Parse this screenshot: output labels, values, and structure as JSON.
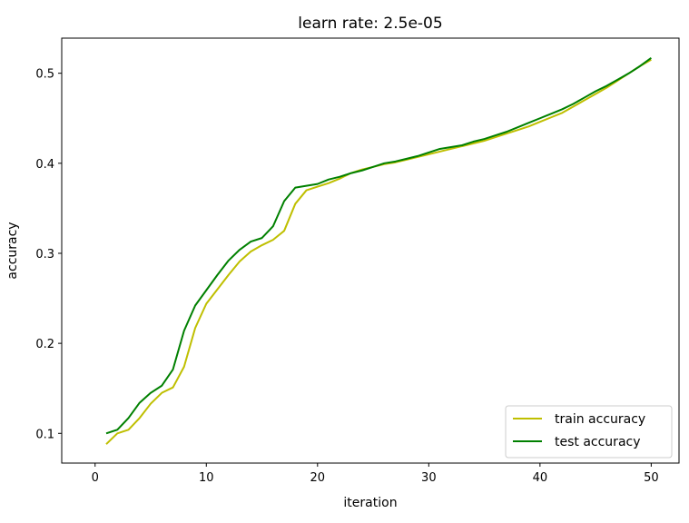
{
  "chart_data": {
    "type": "line",
    "title": "learn rate: 2.5e-05",
    "xlabel": "iteration",
    "ylabel": "accuracy",
    "xlim": [
      -3.0,
      52.5
    ],
    "ylim": [
      0.067,
      0.539
    ],
    "xticks": [
      "0",
      "10",
      "20",
      "30",
      "40",
      "50"
    ],
    "yticks": [
      "0.1",
      "0.2",
      "0.3",
      "0.4",
      "0.5"
    ],
    "grid": false,
    "legend_position": "lower right",
    "series": [
      {
        "name": "train accuracy",
        "color": "#bfbf00",
        "x": [
          1,
          2,
          3,
          4,
          5,
          6,
          7,
          8,
          9,
          10,
          11,
          12,
          13,
          14,
          15,
          16,
          17,
          18,
          19,
          20,
          21,
          22,
          23,
          24,
          25,
          26,
          27,
          28,
          29,
          30,
          31,
          32,
          33,
          34,
          35,
          36,
          37,
          38,
          39,
          40,
          41,
          42,
          43,
          44,
          45,
          46,
          47,
          48,
          49,
          50
        ],
        "values": [
          0.088,
          0.1,
          0.104,
          0.117,
          0.133,
          0.145,
          0.151,
          0.174,
          0.217,
          0.244,
          0.26,
          0.276,
          0.291,
          0.302,
          0.309,
          0.315,
          0.325,
          0.355,
          0.37,
          0.374,
          0.378,
          0.383,
          0.389,
          0.393,
          0.396,
          0.399,
          0.401,
          0.404,
          0.407,
          0.41,
          0.413,
          0.416,
          0.419,
          0.422,
          0.425,
          0.429,
          0.433,
          0.437,
          0.441,
          0.446,
          0.451,
          0.456,
          0.463,
          0.47,
          0.477,
          0.484,
          0.492,
          0.5,
          0.508,
          0.515
        ]
      },
      {
        "name": "test accuracy",
        "color": "#008000",
        "x": [
          1,
          2,
          3,
          4,
          5,
          6,
          7,
          8,
          9,
          10,
          11,
          12,
          13,
          14,
          15,
          16,
          17,
          18,
          19,
          20,
          21,
          22,
          23,
          24,
          25,
          26,
          27,
          28,
          29,
          30,
          31,
          32,
          33,
          34,
          35,
          36,
          37,
          38,
          39,
          40,
          41,
          42,
          43,
          44,
          45,
          46,
          47,
          48,
          49,
          50
        ],
        "values": [
          0.1,
          0.104,
          0.117,
          0.134,
          0.145,
          0.153,
          0.171,
          0.214,
          0.242,
          0.259,
          0.276,
          0.292,
          0.304,
          0.313,
          0.317,
          0.33,
          0.358,
          0.373,
          0.375,
          0.377,
          0.382,
          0.385,
          0.389,
          0.392,
          0.396,
          0.4,
          0.402,
          0.405,
          0.408,
          0.412,
          0.416,
          0.418,
          0.42,
          0.424,
          0.427,
          0.431,
          0.435,
          0.44,
          0.445,
          0.45,
          0.455,
          0.46,
          0.466,
          0.473,
          0.48,
          0.486,
          0.493,
          0.5,
          0.508,
          0.517
        ]
      }
    ]
  }
}
